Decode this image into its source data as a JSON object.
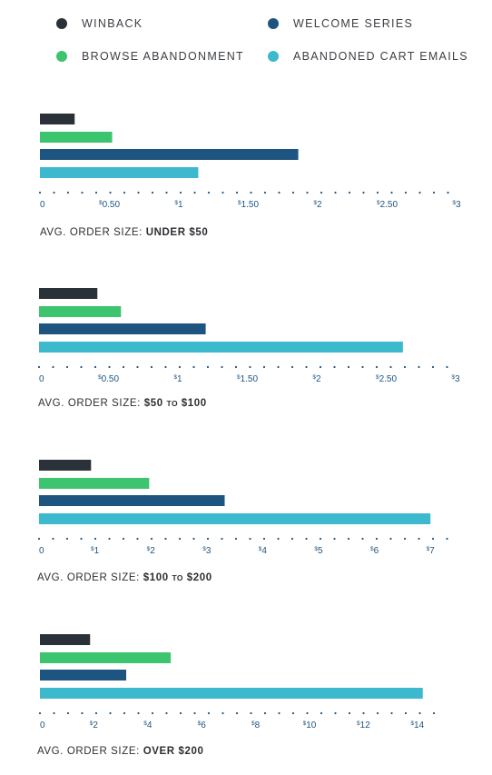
{
  "legend": {
    "winback": "WINBACK",
    "welcome": "WELCOME SERIES",
    "browse": "BROWSE ABANDONMENT",
    "cart": "ABANDONED CART EMAILS"
  },
  "colors": {
    "winback": "#2b3138",
    "browse": "#3cc46e",
    "welcome": "#1e5580",
    "cart": "#3cb9cc",
    "axis": "#1e5580"
  },
  "chart_data": [
    {
      "type": "bar",
      "orientation": "horizontal",
      "series_order": [
        "WINBACK",
        "BROWSE ABANDONMENT",
        "WELCOME SERIES",
        "ABANDONED CART EMAILS"
      ],
      "values": [
        0.25,
        0.52,
        1.86,
        1.14
      ],
      "xlim": [
        0,
        3
      ],
      "ticks": [
        0,
        0.5,
        1,
        1.5,
        2,
        2.5,
        3
      ],
      "tick_labels": [
        {
          "cur": "",
          "num": "0"
        },
        {
          "cur": "$",
          "num": "0.50"
        },
        {
          "cur": "$",
          "num": "1"
        },
        {
          "cur": "$",
          "num": "1.50"
        },
        {
          "cur": "$",
          "num": "2"
        },
        {
          "cur": "$",
          "num": "2.50"
        },
        {
          "cur": "$",
          "num": "3"
        }
      ],
      "caption": {
        "prefix": "AVG. ORDER SIZE:",
        "part1": "UNDER $50",
        "to": "",
        "part2": ""
      }
    },
    {
      "type": "bar",
      "orientation": "horizontal",
      "series_order": [
        "WINBACK",
        "BROWSE ABANDONMENT",
        "WELCOME SERIES",
        "ABANDONED CART EMAILS"
      ],
      "values": [
        0.42,
        0.59,
        1.2,
        2.62
      ],
      "xlim": [
        0,
        3
      ],
      "ticks": [
        0,
        0.5,
        1,
        1.5,
        2,
        2.5,
        3
      ],
      "tick_labels": [
        {
          "cur": "",
          "num": "0"
        },
        {
          "cur": "$",
          "num": "0.50"
        },
        {
          "cur": "$",
          "num": "1"
        },
        {
          "cur": "$",
          "num": "1.50"
        },
        {
          "cur": "$",
          "num": "2"
        },
        {
          "cur": "$",
          "num": "2.50"
        },
        {
          "cur": "$",
          "num": "3"
        }
      ],
      "caption": {
        "prefix": "AVG. ORDER SIZE:",
        "part1": "$50",
        "to": "TO",
        "part2": "$100"
      }
    },
    {
      "type": "bar",
      "orientation": "horizontal",
      "series_order": [
        "WINBACK",
        "BROWSE ABANDONMENT",
        "WELCOME SERIES",
        "ABANDONED CART EMAILS"
      ],
      "values": [
        0.93,
        1.97,
        3.32,
        7.0
      ],
      "xlim": [
        0,
        7.5
      ],
      "ticks": [
        0,
        1,
        2,
        3,
        4,
        5,
        6,
        7
      ],
      "tick_labels": [
        {
          "cur": "",
          "num": "0"
        },
        {
          "cur": "$",
          "num": "1"
        },
        {
          "cur": "$",
          "num": "2"
        },
        {
          "cur": "$",
          "num": "3"
        },
        {
          "cur": "$",
          "num": "4"
        },
        {
          "cur": "$",
          "num": "5"
        },
        {
          "cur": "$",
          "num": "6"
        },
        {
          "cur": "$",
          "num": "7"
        }
      ],
      "caption": {
        "prefix": "AVG. ORDER SIZE:",
        "part1": "$100",
        "to": "TO",
        "part2": "$200"
      }
    },
    {
      "type": "bar",
      "orientation": "horizontal",
      "series_order": [
        "WINBACK",
        "BROWSE ABANDONMENT",
        "WELCOME SERIES",
        "ABANDONED CART EMAILS"
      ],
      "values": [
        1.86,
        4.85,
        3.2,
        14.2
      ],
      "xlim": [
        0,
        15
      ],
      "ticks": [
        0,
        2,
        4,
        6,
        8,
        10,
        12,
        14
      ],
      "tick_labels": [
        {
          "cur": "",
          "num": "0"
        },
        {
          "cur": "$",
          "num": "2"
        },
        {
          "cur": "$",
          "num": "4"
        },
        {
          "cur": "$",
          "num": "6"
        },
        {
          "cur": "$",
          "num": "8"
        },
        {
          "cur": "$",
          "num": "10"
        },
        {
          "cur": "$",
          "num": "12"
        },
        {
          "cur": "$",
          "num": "14"
        }
      ],
      "caption": {
        "prefix": "AVG. ORDER SIZE:",
        "part1": "OVER $200",
        "to": "",
        "part2": ""
      }
    }
  ]
}
